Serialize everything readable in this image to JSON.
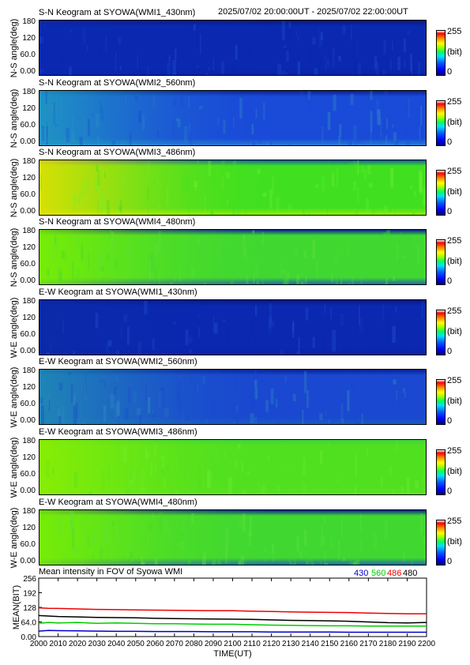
{
  "header": {
    "time_range": "2025/07/02 20:00:00UT - 2025/07/02 22:00:00UT"
  },
  "panels": [
    {
      "title": "S-N Keogram at SYOWA(WMI1_430nm)",
      "ylabel": "N-S angle(deg)",
      "base": "#0a28b0",
      "top_band": "#071a80",
      "bottom_band": "#0a22a0",
      "warm": "#0a28b0",
      "speck": "#2050d0"
    },
    {
      "title": "S-N Keogram at SYOWA(WMI2_560nm)",
      "ylabel": "N-S angle(deg)",
      "base": "#1a4ad8",
      "top_band": "#0a2090",
      "bottom_band": "#2a88d0",
      "warm": "#20a0c0",
      "speck": "#3090c0"
    },
    {
      "title": "S-N Keogram at SYOWA(WMI3_486nm)",
      "ylabel": "N-S angle(deg)",
      "base": "#40e020",
      "top_band": "#1060a0",
      "bottom_band": "#a0f000",
      "warm": "#f0e000",
      "speck": "#70f030"
    },
    {
      "title": "S-N Keogram at SYOWA(WMI4_480nm)",
      "ylabel": "N-S angle(deg)",
      "base": "#40d830",
      "top_band": "#0a2090",
      "bottom_band": "#1a50c0",
      "warm": "#80f000",
      "speck": "#60e040"
    },
    {
      "title": "E-W Keogram at SYOWA(WMI1_430nm)",
      "ylabel": "W-E angle(deg)",
      "base": "#0a28b0",
      "top_band": "#071a80",
      "bottom_band": "#0a22a0",
      "warm": "#0a2aa8",
      "speck": "#2050d0"
    },
    {
      "title": "E-W Keogram at SYOWA(WMI2_560nm)",
      "ylabel": "W-E angle(deg)",
      "base": "#1a48d0",
      "top_band": "#0a2090",
      "bottom_band": "#1a60c0",
      "warm": "#2090b0",
      "speck": "#3090c0"
    },
    {
      "title": "E-W Keogram at SYOWA(WMI3_486nm)",
      "ylabel": "W-E angle(deg)",
      "base": "#50e020",
      "top_band": "#40d040",
      "bottom_band": "#60e020",
      "warm": "#90f000",
      "speck": "#70f030"
    },
    {
      "title": "E-W Keogram at SYOWA(WMI4_480nm)",
      "ylabel": "W-E angle(deg)",
      "base": "#40d830",
      "top_band": "#0a2090",
      "bottom_band": "#1a50c0",
      "warm": "#80f000",
      "speck": "#60e040"
    }
  ],
  "panel_yticks": [
    "180",
    "120",
    "60.0",
    "0.00"
  ],
  "colorbar": {
    "max": "255",
    "unit": "(bit)",
    "min": "0"
  },
  "chart_data": {
    "type": "line",
    "title": "Mean intensity in FOV of Syowa WMI",
    "xlabel": "TIME(UT)",
    "ylabel": "MEAN(BIT)",
    "xlim": [
      2000,
      2200
    ],
    "ylim": [
      0,
      256
    ],
    "x_ticks": [
      "2000",
      "2010",
      "2020",
      "2030",
      "2040",
      "2050",
      "2060",
      "2070",
      "2080",
      "2090",
      "2100",
      "2110",
      "2120",
      "2130",
      "2140",
      "2150",
      "2160",
      "2170",
      "2180",
      "2190",
      "2200"
    ],
    "y_ticks": [
      "256",
      "192",
      "128",
      "64.0",
      "0.00"
    ],
    "series": [
      {
        "name": "430",
        "color": "#0000cc",
        "x": [
          2000,
          2005,
          2010,
          2020,
          2030,
          2040,
          2050,
          2060,
          2070,
          2080,
          2090,
          2100,
          2110,
          2120,
          2130,
          2140,
          2150,
          2160,
          2170,
          2180,
          2190,
          2200
        ],
        "values": [
          24,
          27,
          26,
          25,
          24,
          23,
          23,
          22,
          22,
          22,
          21,
          21,
          21,
          20,
          20,
          20,
          20,
          19,
          19,
          19,
          19,
          19
        ]
      },
      {
        "name": "560",
        "color": "#00cc00",
        "x": [
          2000,
          2005,
          2010,
          2020,
          2030,
          2040,
          2050,
          2060,
          2070,
          2080,
          2090,
          2100,
          2110,
          2120,
          2130,
          2140,
          2150,
          2160,
          2170,
          2180,
          2190,
          2200
        ],
        "values": [
          58,
          62,
          60,
          62,
          58,
          60,
          58,
          56,
          56,
          55,
          54,
          54,
          52,
          50,
          49,
          48,
          47,
          47,
          46,
          46,
          46,
          46
        ]
      },
      {
        "name": "486",
        "color": "#ee0000",
        "x": [
          2000,
          2005,
          2010,
          2020,
          2030,
          2040,
          2050,
          2060,
          2070,
          2080,
          2090,
          2100,
          2110,
          2120,
          2130,
          2140,
          2150,
          2160,
          2170,
          2180,
          2190,
          2200
        ],
        "values": [
          126,
          124,
          123,
          121,
          119,
          118,
          117,
          116,
          115,
          114,
          113,
          113,
          111,
          110,
          108,
          107,
          106,
          105,
          103,
          101,
          100,
          100
        ]
      },
      {
        "name": "480",
        "color": "#000000",
        "x": [
          2000,
          2005,
          2010,
          2020,
          2030,
          2040,
          2050,
          2060,
          2070,
          2080,
          2090,
          2100,
          2110,
          2120,
          2130,
          2140,
          2150,
          2160,
          2170,
          2180,
          2190,
          2200
        ],
        "values": [
          92,
          90,
          88,
          86,
          84,
          83,
          82,
          80,
          79,
          78,
          77,
          76,
          75,
          73,
          71,
          70,
          69,
          67,
          64,
          61,
          60,
          62
        ]
      }
    ]
  }
}
